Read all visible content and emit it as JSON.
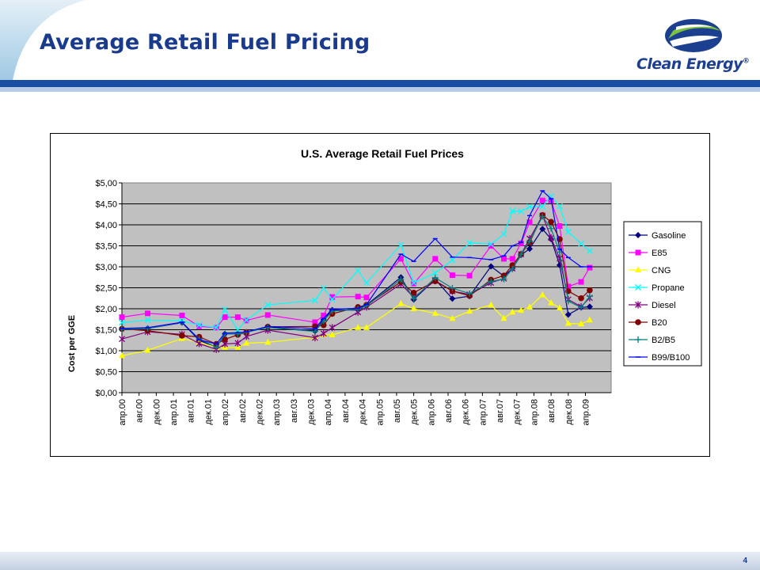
{
  "slide": {
    "title": "Average Retail Fuel Pricing",
    "logo_text": "Clean Energy",
    "logo_mark": "®",
    "page_number": "4"
  },
  "colors": {
    "title": "#1a3b8c",
    "header_band": "#1a4ea3",
    "plot_area": "#c0c0c0"
  },
  "chart_data": {
    "type": "line",
    "title": "U.S. Average Retail Fuel Prices",
    "xlabel": "",
    "ylabel": "Cost per GGE",
    "ylim": [
      0,
      5
    ],
    "yticks": [
      "$0,00",
      "$0,50",
      "$1,00",
      "$1,50",
      "$2,00",
      "$2,50",
      "$3,00",
      "$3,50",
      "$4,00",
      "$4,50",
      "$5,00"
    ],
    "x_domain": [
      0,
      114
    ],
    "x_ticks": [
      {
        "label": "апр.00",
        "x": 0
      },
      {
        "label": "авг.00",
        "x": 4
      },
      {
        "label": "дек.00",
        "x": 8
      },
      {
        "label": "апр.01",
        "x": 12
      },
      {
        "label": "авг.01",
        "x": 16
      },
      {
        "label": "дек.01",
        "x": 20
      },
      {
        "label": "апр.02",
        "x": 24
      },
      {
        "label": "авг.02",
        "x": 28
      },
      {
        "label": "дек.02",
        "x": 32
      },
      {
        "label": "апр.03",
        "x": 36
      },
      {
        "label": "авг.03",
        "x": 40
      },
      {
        "label": "дек.03",
        "x": 44
      },
      {
        "label": "апр.04",
        "x": 48
      },
      {
        "label": "авг.04",
        "x": 52
      },
      {
        "label": "дек.04",
        "x": 56
      },
      {
        "label": "апр.05",
        "x": 60
      },
      {
        "label": "авг.05",
        "x": 64
      },
      {
        "label": "дек.05",
        "x": 68
      },
      {
        "label": "апр.06",
        "x": 72
      },
      {
        "label": "авг.06",
        "x": 76
      },
      {
        "label": "дек.06",
        "x": 80
      },
      {
        "label": "апр.07",
        "x": 84
      },
      {
        "label": "авг.07",
        "x": 88
      },
      {
        "label": "дек.07",
        "x": 92
      },
      {
        "label": "апр.08",
        "x": 96
      },
      {
        "label": "авг.08",
        "x": 100
      },
      {
        "label": "дек.08",
        "x": 104
      },
      {
        "label": "апр.09",
        "x": 108
      }
    ],
    "grid": "horizontal",
    "legend": "right",
    "series": [
      {
        "name": "Gasoline",
        "color": "#000080",
        "marker": "diamond",
        "x": [
          0,
          6,
          14,
          18,
          22,
          24,
          27,
          29,
          34,
          45,
          47,
          49,
          55,
          57,
          65,
          68,
          73,
          77,
          81,
          86,
          89,
          91,
          93,
          95,
          98,
          100,
          102,
          104,
          107,
          109
        ],
        "y": [
          1.51,
          1.53,
          1.67,
          1.25,
          1.08,
          1.4,
          1.4,
          1.44,
          1.57,
          1.47,
          1.74,
          1.97,
          1.97,
          2.09,
          2.75,
          2.22,
          2.7,
          2.24,
          2.3,
          3.01,
          2.78,
          2.96,
          3.28,
          3.43,
          3.9,
          3.66,
          3.04,
          1.86,
          2.03,
          2.05
        ]
      },
      {
        "name": "E85",
        "color": "#ff00ff",
        "marker": "square",
        "x": [
          0,
          6,
          14,
          18,
          22,
          24,
          27,
          29,
          34,
          45,
          47,
          49,
          55,
          57,
          65,
          68,
          73,
          77,
          81,
          86,
          89,
          91,
          93,
          95,
          98,
          100,
          102,
          104,
          107,
          109
        ],
        "y": [
          1.8,
          1.89,
          1.84,
          1.58,
          1.55,
          1.8,
          1.8,
          1.72,
          1.85,
          1.68,
          1.84,
          2.28,
          2.29,
          2.27,
          3.19,
          2.6,
          3.19,
          2.8,
          2.79,
          3.5,
          3.19,
          3.19,
          3.56,
          4.06,
          4.58,
          4.58,
          3.97,
          2.53,
          2.64,
          2.98
        ]
      },
      {
        "name": "CNG",
        "color": "#ffff00",
        "marker": "triangle",
        "x": [
          0,
          6,
          14,
          18,
          22,
          24,
          27,
          29,
          34,
          45,
          47,
          49,
          55,
          57,
          65,
          68,
          73,
          77,
          81,
          86,
          89,
          91,
          93,
          95,
          98,
          100,
          102,
          104,
          107,
          109
        ],
        "y": [
          0.88,
          1.01,
          1.29,
          1.2,
          1.08,
          1.08,
          1.08,
          1.18,
          1.2,
          1.32,
          1.38,
          1.38,
          1.55,
          1.55,
          2.12,
          2.0,
          1.89,
          1.77,
          1.94,
          2.09,
          1.77,
          1.92,
          1.96,
          2.04,
          2.33,
          2.14,
          2.02,
          1.65,
          1.64,
          1.73
        ]
      },
      {
        "name": "Propane",
        "color": "#00ffff",
        "marker": "x",
        "x": [
          0,
          6,
          14,
          18,
          22,
          24,
          27,
          29,
          34,
          45,
          47,
          49,
          55,
          57,
          65,
          68,
          73,
          77,
          81,
          86,
          89,
          91,
          93,
          95,
          98,
          100,
          102,
          104,
          107,
          109
        ],
        "y": [
          1.67,
          1.73,
          1.71,
          1.61,
          1.55,
          1.98,
          1.5,
          1.73,
          2.09,
          2.2,
          2.49,
          2.22,
          2.91,
          2.62,
          3.52,
          2.62,
          2.85,
          3.16,
          3.57,
          3.54,
          3.78,
          4.33,
          4.32,
          4.43,
          4.44,
          4.68,
          4.44,
          3.83,
          3.55,
          3.38
        ]
      },
      {
        "name": "Diesel",
        "color": "#800080",
        "marker": "asterisk",
        "x": [
          0,
          6,
          14,
          18,
          22,
          24,
          27,
          29,
          34,
          45,
          47,
          49,
          55,
          57,
          65,
          68,
          73,
          77,
          81,
          86,
          89,
          91,
          93,
          95,
          98,
          100,
          102,
          104,
          107,
          109
        ],
        "y": [
          1.28,
          1.45,
          1.39,
          1.17,
          1.03,
          1.16,
          1.18,
          1.34,
          1.49,
          1.31,
          1.41,
          1.55,
          1.92,
          2.04,
          2.59,
          2.27,
          2.67,
          2.42,
          2.34,
          2.62,
          2.72,
          2.96,
          3.3,
          3.67,
          4.22,
          3.69,
          3.2,
          2.22,
          2.05,
          2.26
        ]
      },
      {
        "name": "B20",
        "color": "#800000",
        "marker": "circle",
        "x": [
          0,
          6,
          14,
          18,
          22,
          24,
          27,
          29,
          34,
          45,
          47,
          49,
          55,
          57,
          65,
          68,
          73,
          77,
          81,
          86,
          89,
          91,
          93,
          95,
          98,
          100,
          102,
          104,
          107,
          109
        ],
        "y": [
          1.52,
          1.48,
          1.36,
          1.33,
          1.16,
          1.27,
          1.38,
          1.44,
          1.57,
          1.58,
          1.61,
          1.88,
          2.04,
          2.09,
          2.64,
          2.38,
          2.66,
          2.42,
          2.31,
          2.69,
          2.79,
          3.04,
          3.3,
          3.58,
          4.23,
          4.07,
          3.66,
          2.42,
          2.25,
          2.44
        ]
      },
      {
        "name": "B2/B5",
        "color": "#008080",
        "marker": "plus",
        "x": [
          0,
          6,
          14,
          18,
          22,
          24,
          27,
          29,
          34,
          45,
          47,
          49,
          55,
          57,
          65,
          68,
          73,
          77,
          81,
          86,
          89,
          91,
          93,
          95,
          98,
          100,
          102,
          104,
          107,
          109
        ],
        "y": [
          1.51,
          1.53,
          1.68,
          1.28,
          1.08,
          1.4,
          1.4,
          1.44,
          1.55,
          1.46,
          1.71,
          1.94,
          1.99,
          2.07,
          2.7,
          2.24,
          2.74,
          2.49,
          2.36,
          2.65,
          2.71,
          2.95,
          3.3,
          3.61,
          4.2,
          3.91,
          3.35,
          2.18,
          2.03,
          2.3
        ]
      },
      {
        "name": "B99/B100",
        "color": "#0000ff",
        "marker": "none",
        "x": [
          0,
          6,
          14,
          18,
          22,
          24,
          27,
          29,
          34,
          45,
          47,
          49,
          55,
          57,
          65,
          68,
          73,
          77,
          81,
          86,
          89,
          91,
          93,
          95,
          98,
          100,
          102,
          104,
          107,
          109
        ],
        "y": [
          1.53,
          1.55,
          1.68,
          1.26,
          1.16,
          1.42,
          1.43,
          1.45,
          1.58,
          1.53,
          1.77,
          1.99,
          2.01,
          2.1,
          3.3,
          3.13,
          3.67,
          3.23,
          3.22,
          3.17,
          3.26,
          3.5,
          3.58,
          4.22,
          4.81,
          4.62,
          3.42,
          3.22,
          3.0,
          3.0
        ]
      }
    ]
  }
}
